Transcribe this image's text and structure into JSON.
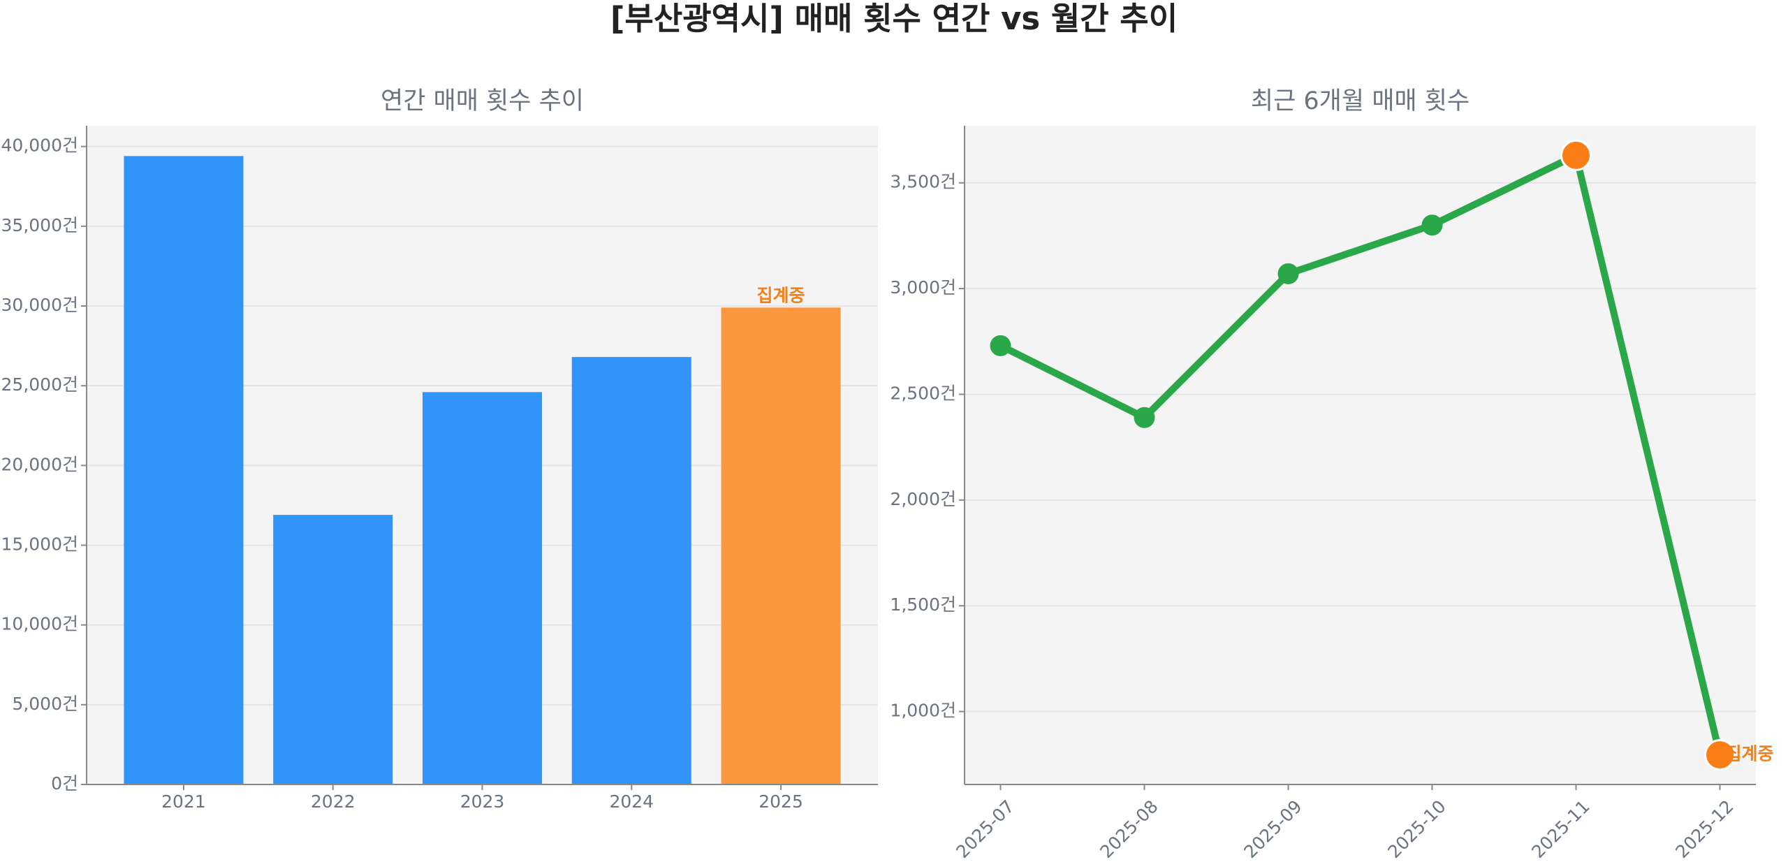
{
  "title": "[부산광역시] 매매 횟수 연간 vs 월간 추이",
  "chart_data": [
    {
      "type": "bar",
      "title": "연간 매매 횟수 추이",
      "categories": [
        "2021",
        "2022",
        "2023",
        "2024",
        "2025"
      ],
      "values": [
        39400,
        16900,
        24600,
        26800,
        29900
      ],
      "colors": [
        "#3094fa",
        "#3094fa",
        "#3094fa",
        "#3094fa",
        "#f9963e"
      ],
      "annotation": "집계중",
      "annotation_color": "#f57f17",
      "ylim": [
        0,
        41300
      ],
      "yticks": [
        {
          "value": 0,
          "label": "0건"
        },
        {
          "value": 5000,
          "label": "5,000건"
        },
        {
          "value": 10000,
          "label": "10,000건"
        },
        {
          "value": 15000,
          "label": "15,000건"
        },
        {
          "value": 20000,
          "label": "20,000건"
        },
        {
          "value": 25000,
          "label": "25,000건"
        },
        {
          "value": 30000,
          "label": "30,000건"
        },
        {
          "value": 35000,
          "label": "35,000건"
        },
        {
          "value": 40000,
          "label": "40,000건"
        }
      ],
      "grid": true
    },
    {
      "type": "line",
      "title": "최근 6개월 매매 횟수",
      "categories": [
        "2025-07",
        "2025-08",
        "2025-09",
        "2025-10",
        "2025-11",
        "2025-12"
      ],
      "values": [
        2730,
        2390,
        3070,
        3300,
        3630,
        795
      ],
      "color": "#2aa748",
      "marker_colors": [
        "#2aa748",
        "#2aa748",
        "#2aa748",
        "#2aa748",
        "#fb7d16",
        "#fb7d16"
      ],
      "annotation": "집계중",
      "annotation_color": "#f57f17",
      "ylim": [
        655,
        3770
      ],
      "yticks": [
        {
          "value": 1000,
          "label": "1,000건"
        },
        {
          "value": 1500,
          "label": "1,500건"
        },
        {
          "value": 2000,
          "label": "2,000건"
        },
        {
          "value": 2500,
          "label": "2,500건"
        },
        {
          "value": 3000,
          "label": "3,000건"
        },
        {
          "value": 3500,
          "label": "3,500건"
        }
      ],
      "grid": true
    }
  ]
}
